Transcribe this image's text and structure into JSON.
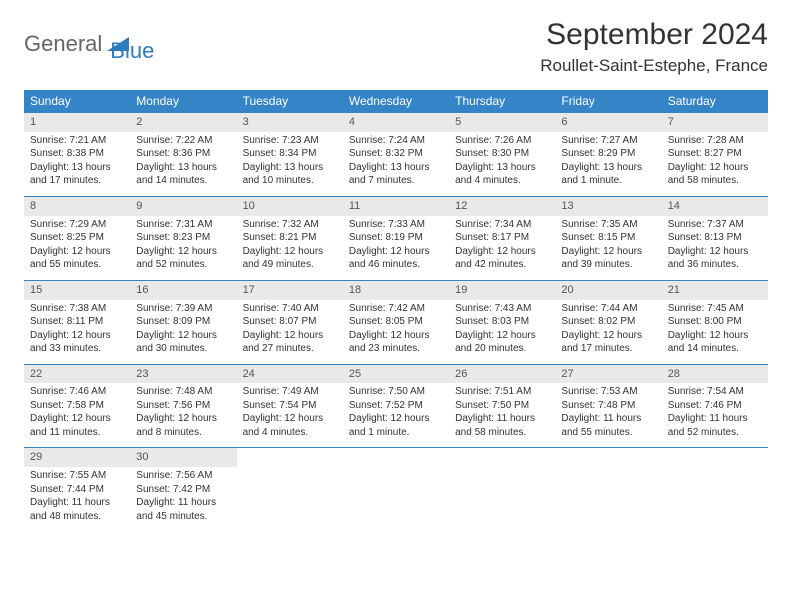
{
  "brand": {
    "part1": "General",
    "part2": "Blue"
  },
  "header": {
    "title": "September 2024",
    "location": "Roullet-Saint-Estephe, France"
  },
  "colors": {
    "headerBar": "#3484c7",
    "dayNumBg": "#e9e9e9",
    "text": "#333333",
    "logoGray": "#666666",
    "logoBlue": "#2f7bbf"
  },
  "weekdays": [
    "Sunday",
    "Monday",
    "Tuesday",
    "Wednesday",
    "Thursday",
    "Friday",
    "Saturday"
  ],
  "days": [
    {
      "n": "1",
      "sunrise": "Sunrise: 7:21 AM",
      "sunset": "Sunset: 8:38 PM",
      "day1": "Daylight: 13 hours",
      "day2": "and 17 minutes."
    },
    {
      "n": "2",
      "sunrise": "Sunrise: 7:22 AM",
      "sunset": "Sunset: 8:36 PM",
      "day1": "Daylight: 13 hours",
      "day2": "and 14 minutes."
    },
    {
      "n": "3",
      "sunrise": "Sunrise: 7:23 AM",
      "sunset": "Sunset: 8:34 PM",
      "day1": "Daylight: 13 hours",
      "day2": "and 10 minutes."
    },
    {
      "n": "4",
      "sunrise": "Sunrise: 7:24 AM",
      "sunset": "Sunset: 8:32 PM",
      "day1": "Daylight: 13 hours",
      "day2": "and 7 minutes."
    },
    {
      "n": "5",
      "sunrise": "Sunrise: 7:26 AM",
      "sunset": "Sunset: 8:30 PM",
      "day1": "Daylight: 13 hours",
      "day2": "and 4 minutes."
    },
    {
      "n": "6",
      "sunrise": "Sunrise: 7:27 AM",
      "sunset": "Sunset: 8:29 PM",
      "day1": "Daylight: 13 hours",
      "day2": "and 1 minute."
    },
    {
      "n": "7",
      "sunrise": "Sunrise: 7:28 AM",
      "sunset": "Sunset: 8:27 PM",
      "day1": "Daylight: 12 hours",
      "day2": "and 58 minutes."
    },
    {
      "n": "8",
      "sunrise": "Sunrise: 7:29 AM",
      "sunset": "Sunset: 8:25 PM",
      "day1": "Daylight: 12 hours",
      "day2": "and 55 minutes."
    },
    {
      "n": "9",
      "sunrise": "Sunrise: 7:31 AM",
      "sunset": "Sunset: 8:23 PM",
      "day1": "Daylight: 12 hours",
      "day2": "and 52 minutes."
    },
    {
      "n": "10",
      "sunrise": "Sunrise: 7:32 AM",
      "sunset": "Sunset: 8:21 PM",
      "day1": "Daylight: 12 hours",
      "day2": "and 49 minutes."
    },
    {
      "n": "11",
      "sunrise": "Sunrise: 7:33 AM",
      "sunset": "Sunset: 8:19 PM",
      "day1": "Daylight: 12 hours",
      "day2": "and 46 minutes."
    },
    {
      "n": "12",
      "sunrise": "Sunrise: 7:34 AM",
      "sunset": "Sunset: 8:17 PM",
      "day1": "Daylight: 12 hours",
      "day2": "and 42 minutes."
    },
    {
      "n": "13",
      "sunrise": "Sunrise: 7:35 AM",
      "sunset": "Sunset: 8:15 PM",
      "day1": "Daylight: 12 hours",
      "day2": "and 39 minutes."
    },
    {
      "n": "14",
      "sunrise": "Sunrise: 7:37 AM",
      "sunset": "Sunset: 8:13 PM",
      "day1": "Daylight: 12 hours",
      "day2": "and 36 minutes."
    },
    {
      "n": "15",
      "sunrise": "Sunrise: 7:38 AM",
      "sunset": "Sunset: 8:11 PM",
      "day1": "Daylight: 12 hours",
      "day2": "and 33 minutes."
    },
    {
      "n": "16",
      "sunrise": "Sunrise: 7:39 AM",
      "sunset": "Sunset: 8:09 PM",
      "day1": "Daylight: 12 hours",
      "day2": "and 30 minutes."
    },
    {
      "n": "17",
      "sunrise": "Sunrise: 7:40 AM",
      "sunset": "Sunset: 8:07 PM",
      "day1": "Daylight: 12 hours",
      "day2": "and 27 minutes."
    },
    {
      "n": "18",
      "sunrise": "Sunrise: 7:42 AM",
      "sunset": "Sunset: 8:05 PM",
      "day1": "Daylight: 12 hours",
      "day2": "and 23 minutes."
    },
    {
      "n": "19",
      "sunrise": "Sunrise: 7:43 AM",
      "sunset": "Sunset: 8:03 PM",
      "day1": "Daylight: 12 hours",
      "day2": "and 20 minutes."
    },
    {
      "n": "20",
      "sunrise": "Sunrise: 7:44 AM",
      "sunset": "Sunset: 8:02 PM",
      "day1": "Daylight: 12 hours",
      "day2": "and 17 minutes."
    },
    {
      "n": "21",
      "sunrise": "Sunrise: 7:45 AM",
      "sunset": "Sunset: 8:00 PM",
      "day1": "Daylight: 12 hours",
      "day2": "and 14 minutes."
    },
    {
      "n": "22",
      "sunrise": "Sunrise: 7:46 AM",
      "sunset": "Sunset: 7:58 PM",
      "day1": "Daylight: 12 hours",
      "day2": "and 11 minutes."
    },
    {
      "n": "23",
      "sunrise": "Sunrise: 7:48 AM",
      "sunset": "Sunset: 7:56 PM",
      "day1": "Daylight: 12 hours",
      "day2": "and 8 minutes."
    },
    {
      "n": "24",
      "sunrise": "Sunrise: 7:49 AM",
      "sunset": "Sunset: 7:54 PM",
      "day1": "Daylight: 12 hours",
      "day2": "and 4 minutes."
    },
    {
      "n": "25",
      "sunrise": "Sunrise: 7:50 AM",
      "sunset": "Sunset: 7:52 PM",
      "day1": "Daylight: 12 hours",
      "day2": "and 1 minute."
    },
    {
      "n": "26",
      "sunrise": "Sunrise: 7:51 AM",
      "sunset": "Sunset: 7:50 PM",
      "day1": "Daylight: 11 hours",
      "day2": "and 58 minutes."
    },
    {
      "n": "27",
      "sunrise": "Sunrise: 7:53 AM",
      "sunset": "Sunset: 7:48 PM",
      "day1": "Daylight: 11 hours",
      "day2": "and 55 minutes."
    },
    {
      "n": "28",
      "sunrise": "Sunrise: 7:54 AM",
      "sunset": "Sunset: 7:46 PM",
      "day1": "Daylight: 11 hours",
      "day2": "and 52 minutes."
    },
    {
      "n": "29",
      "sunrise": "Sunrise: 7:55 AM",
      "sunset": "Sunset: 7:44 PM",
      "day1": "Daylight: 11 hours",
      "day2": "and 48 minutes."
    },
    {
      "n": "30",
      "sunrise": "Sunrise: 7:56 AM",
      "sunset": "Sunset: 7:42 PM",
      "day1": "Daylight: 11 hours",
      "day2": "and 45 minutes."
    }
  ],
  "layout": {
    "startWeekday": 0,
    "totalDays": 30,
    "cols": 7
  }
}
